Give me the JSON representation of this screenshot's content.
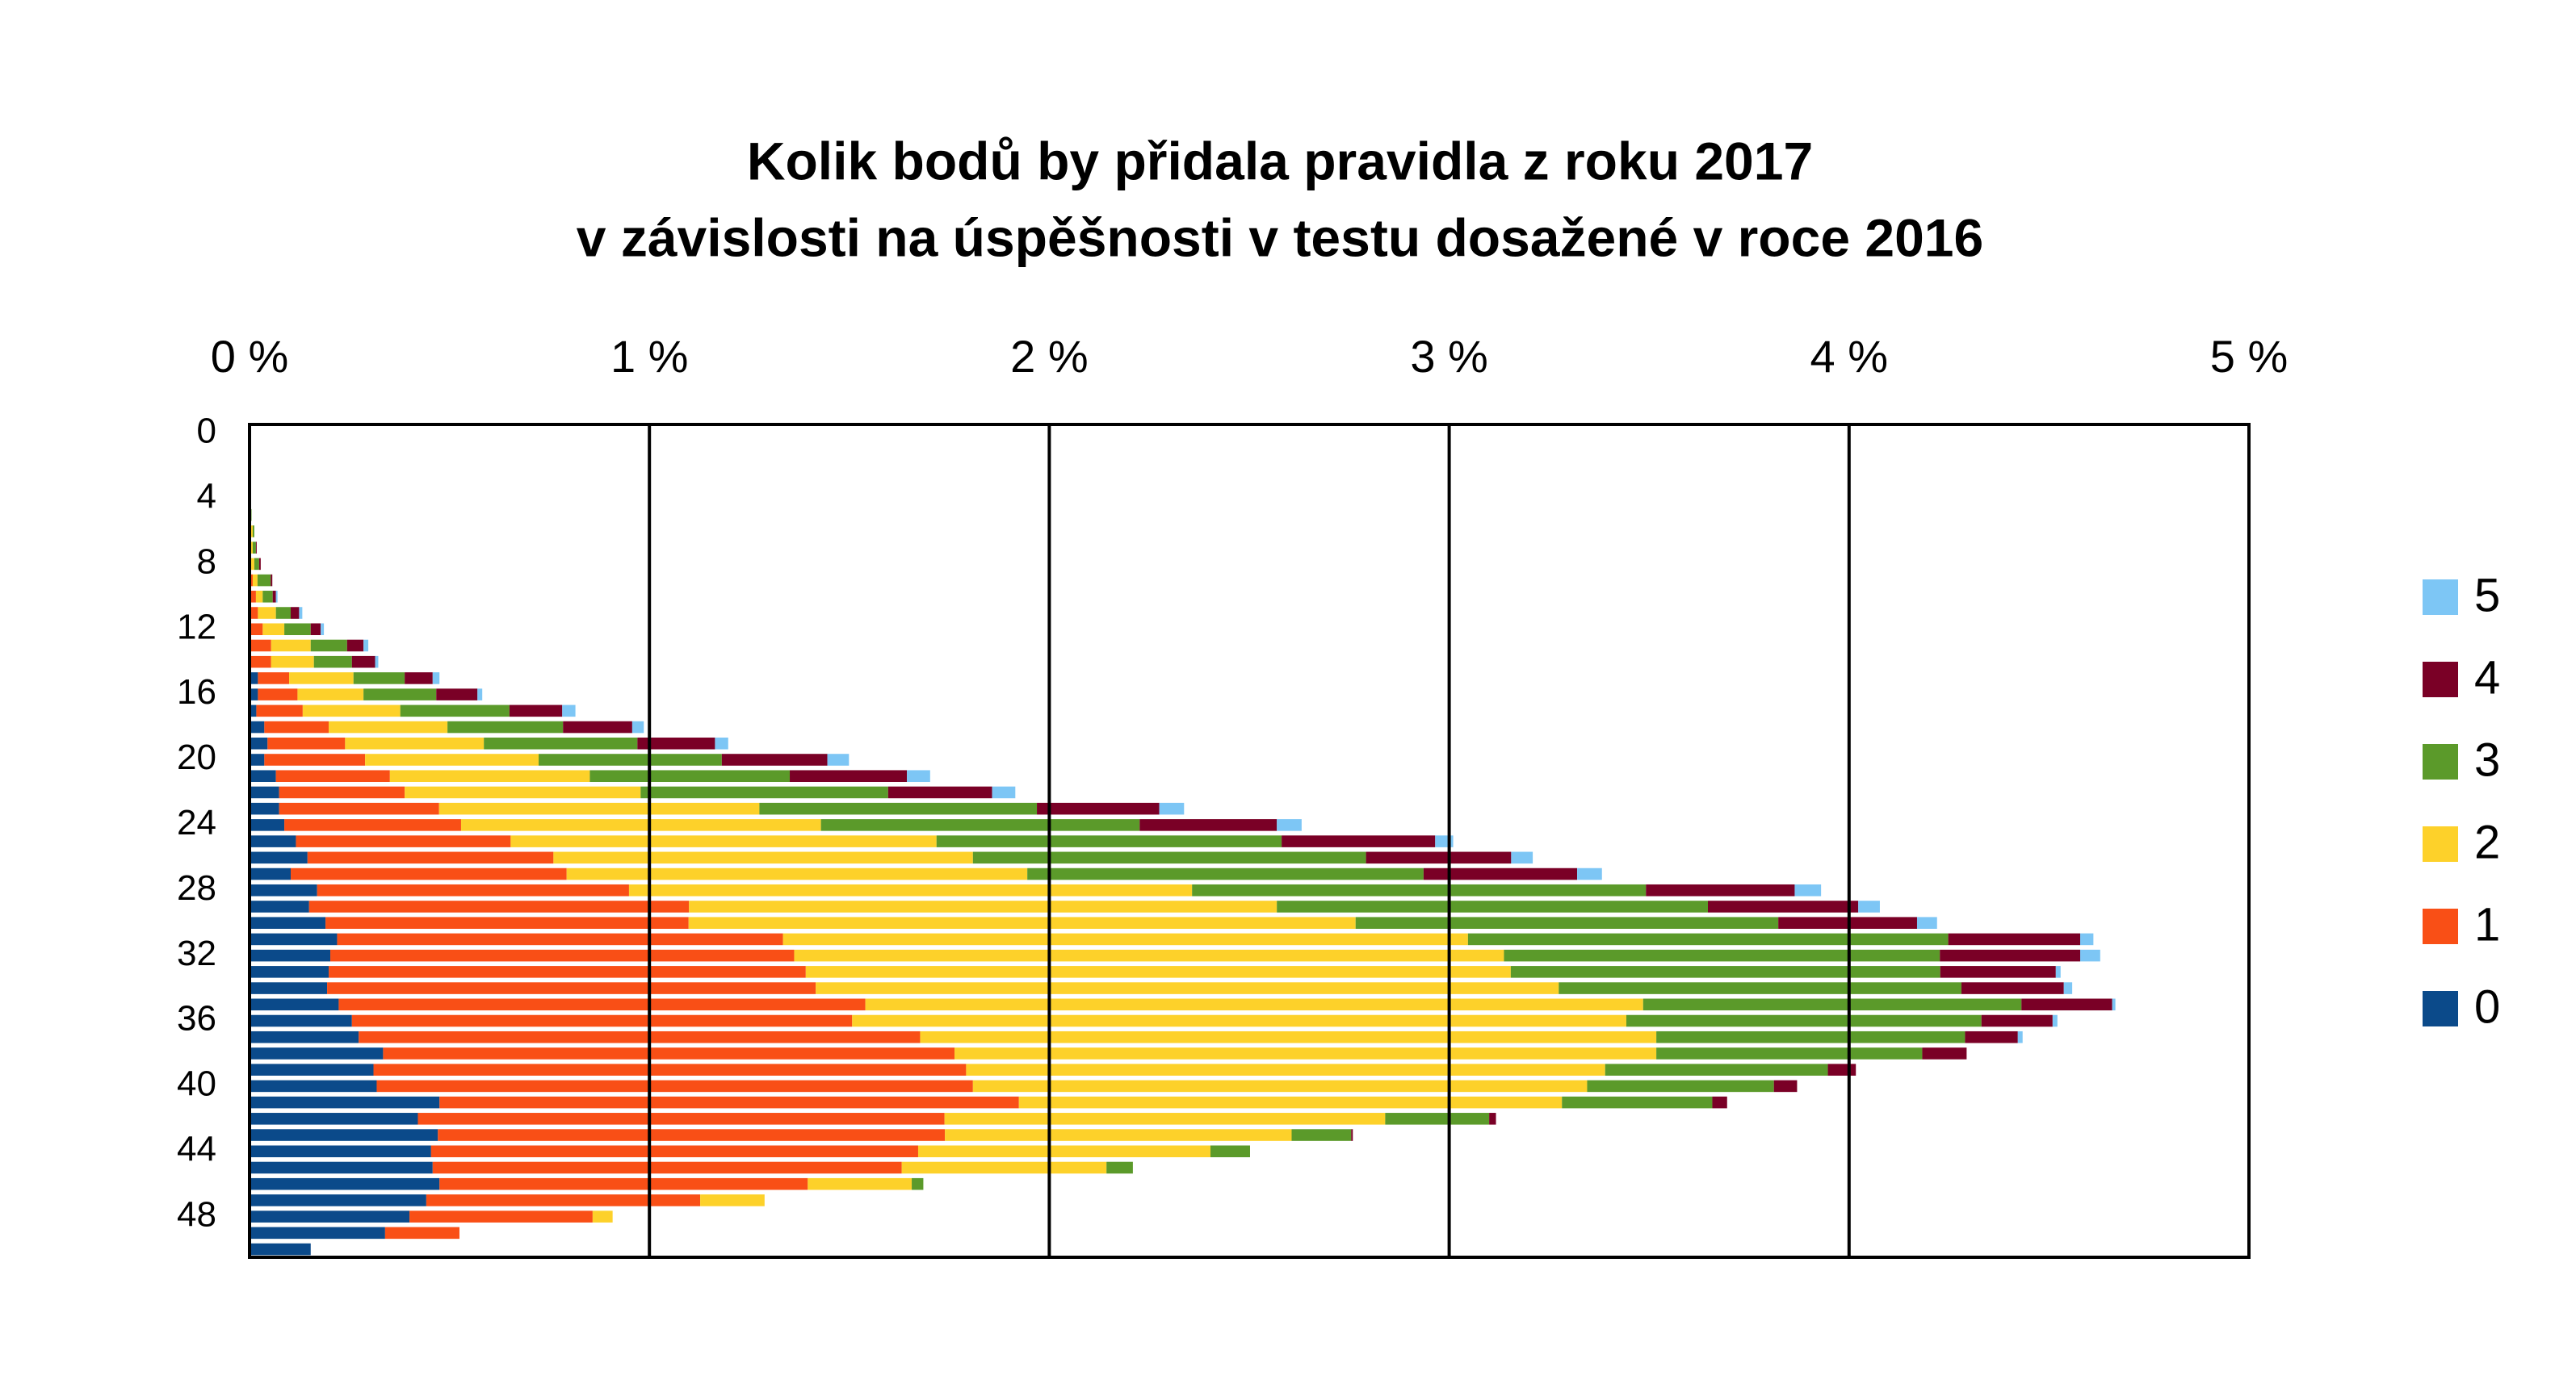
{
  "chart_data": {
    "type": "stacked-barh",
    "title": [
      "Kolik bodů by přidala pravidla z roku 2017",
      "v závislosti na úspěšnosti v testu dosažené v roce 2016"
    ],
    "categories": [
      "0",
      null,
      null,
      null,
      "4",
      null,
      null,
      null,
      "8",
      null,
      null,
      null,
      "12",
      null,
      null,
      null,
      "16",
      null,
      null,
      null,
      "20",
      null,
      null,
      null,
      "24",
      null,
      null,
      null,
      "28",
      null,
      null,
      null,
      "32",
      null,
      null,
      null,
      "36",
      null,
      null,
      null,
      "40",
      null,
      null,
      null,
      "44",
      null,
      null,
      null,
      "48",
      null,
      null
    ],
    "xlim": [
      0,
      5
    ],
    "xticks": [
      {
        "value": 0,
        "label": "0 %"
      },
      {
        "value": 1,
        "label": "1 %"
      },
      {
        "value": 2,
        "label": "2 %"
      },
      {
        "value": 3,
        "label": "3 %"
      },
      {
        "value": 4,
        "label": "4 %"
      },
      {
        "value": 5,
        "label": "5 %"
      }
    ],
    "grid": true,
    "legend": "right",
    "series": [
      {
        "name": "0",
        "color": "#0b4a8a",
        "values": [
          0,
          0,
          0,
          0,
          0,
          0,
          0,
          0,
          0,
          0.004,
          0.004,
          0.004,
          0.004,
          0.004,
          0.004,
          0.021,
          0.021,
          0.017,
          0.037,
          0.045,
          0.037,
          0.066,
          0.074,
          0.074,
          0.087,
          0.116,
          0.145,
          0.103,
          0.169,
          0.149,
          0.19,
          0.219,
          0.202,
          0.198,
          0.194,
          0.223,
          0.256,
          0.273,
          0.334,
          0.31,
          0.318,
          0.475,
          0.421,
          0.471,
          0.454,
          0.458,
          0.475,
          0.442,
          0.4,
          0.339,
          0.153
        ]
      },
      {
        "name": "1",
        "color": "#f94f16",
        "values": [
          0,
          0,
          0,
          0,
          0,
          0,
          0.004,
          0.004,
          0.004,
          0.004,
          0.012,
          0.017,
          0.029,
          0.05,
          0.05,
          0.078,
          0.099,
          0.116,
          0.161,
          0.194,
          0.252,
          0.285,
          0.314,
          0.4,
          0.442,
          0.537,
          0.615,
          0.69,
          0.78,
          0.95,
          0.908,
          1.115,
          1.16,
          1.193,
          1.222,
          1.317,
          1.251,
          1.404,
          1.429,
          1.482,
          1.491,
          1.449,
          1.317,
          1.268,
          1.218,
          1.173,
          0.921,
          0.685,
          0.458,
          0.186,
          0
        ]
      },
      {
        "name": "2",
        "color": "#fdd12a",
        "values": [
          0,
          0,
          0,
          0,
          0.002,
          0.003,
          0.004,
          0.004,
          0.008,
          0.012,
          0.017,
          0.045,
          0.054,
          0.099,
          0.107,
          0.161,
          0.165,
          0.244,
          0.297,
          0.347,
          0.434,
          0.5,
          0.59,
          0.801,
          0.9,
          1.065,
          1.049,
          1.152,
          1.408,
          1.47,
          1.668,
          1.713,
          1.775,
          1.763,
          1.858,
          1.945,
          1.936,
          1.841,
          1.755,
          1.598,
          1.536,
          1.358,
          1.102,
          0.867,
          0.731,
          0.512,
          0.26,
          0.161,
          0.05,
          0,
          0
        ]
      },
      {
        "name": "3",
        "color": "#5b9a2a",
        "values": [
          0,
          0,
          0,
          0,
          0,
          0.002,
          0.004,
          0.008,
          0.012,
          0.033,
          0.025,
          0.037,
          0.066,
          0.091,
          0.095,
          0.128,
          0.182,
          0.273,
          0.289,
          0.384,
          0.458,
          0.5,
          0.619,
          0.694,
          0.797,
          0.863,
          0.983,
          0.991,
          1.135,
          1.078,
          1.057,
          1.201,
          1.09,
          1.074,
          1.007,
          0.946,
          0.888,
          0.772,
          0.665,
          0.557,
          0.467,
          0.376,
          0.26,
          0.149,
          0.099,
          0.066,
          0.029,
          0,
          0,
          0,
          0
        ]
      },
      {
        "name": "4",
        "color": "#7a0026",
        "values": [
          0,
          0,
          0,
          0,
          0,
          0,
          0,
          0.002,
          0.004,
          0.004,
          0.008,
          0.021,
          0.025,
          0.041,
          0.058,
          0.07,
          0.103,
          0.132,
          0.173,
          0.194,
          0.264,
          0.293,
          0.26,
          0.306,
          0.343,
          0.384,
          0.363,
          0.384,
          0.372,
          0.376,
          0.347,
          0.33,
          0.351,
          0.289,
          0.256,
          0.227,
          0.178,
          0.132,
          0.111,
          0.07,
          0.058,
          0.037,
          0.017,
          0.004,
          0,
          0,
          0,
          0,
          0,
          0,
          0
        ]
      },
      {
        "name": "5",
        "color": "#7dc6f5",
        "values": [
          0,
          0,
          0,
          0,
          0,
          0,
          0,
          0,
          0,
          0,
          0.004,
          0.008,
          0.008,
          0.012,
          0.008,
          0.017,
          0.012,
          0.033,
          0.029,
          0.033,
          0.054,
          0.058,
          0.058,
          0.062,
          0.062,
          0.045,
          0.054,
          0.062,
          0.066,
          0.054,
          0.05,
          0.033,
          0.05,
          0.012,
          0.021,
          0.008,
          0.012,
          0.012,
          0,
          0,
          0,
          0,
          0,
          0,
          0,
          0,
          0,
          0,
          0,
          0,
          0
        ]
      }
    ]
  }
}
